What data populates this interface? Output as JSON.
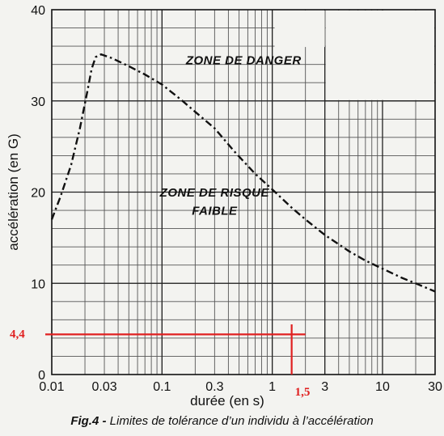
{
  "chart_data": {
    "type": "line",
    "x_scale": "log",
    "xlim": [
      0.01,
      30
    ],
    "ylim": [
      0,
      40
    ],
    "grid": true,
    "xlabel": "durée (en s)",
    "ylabel": "accélération (en G)",
    "x_ticks": [
      {
        "value": 0.01,
        "label": "0.01"
      },
      {
        "value": 0.03,
        "label": "0.03"
      },
      {
        "value": 0.1,
        "label": "0.1"
      },
      {
        "value": 0.3,
        "label": "0.3"
      },
      {
        "value": 1,
        "label": "1"
      },
      {
        "value": 3,
        "label": "3"
      },
      {
        "value": 10,
        "label": "10"
      },
      {
        "value": 30,
        "label": "30"
      }
    ],
    "y_ticks": [
      {
        "value": 0,
        "label": "0"
      },
      {
        "value": 10,
        "label": "10"
      },
      {
        "value": 20,
        "label": "20"
      },
      {
        "value": 30,
        "label": "30"
      },
      {
        "value": 40,
        "label": "40"
      }
    ],
    "series": [
      {
        "line_style": "dash-dot",
        "color": "#111111",
        "x": [
          0.01,
          0.012,
          0.015,
          0.018,
          0.021,
          0.023,
          0.025,
          0.028,
          0.035,
          0.05,
          0.07,
          0.1,
          0.15,
          0.2,
          0.3,
          0.45,
          0.7,
          1,
          1.5,
          2,
          3,
          5,
          7,
          10,
          15,
          20,
          30
        ],
        "y": [
          17,
          19.5,
          23,
          27,
          31,
          33.5,
          34.8,
          35.1,
          34.7,
          33.8,
          32.9,
          31.8,
          30.1,
          28.8,
          27,
          24.5,
          22,
          20.3,
          18.3,
          17,
          15.3,
          13.5,
          12.5,
          11.6,
          10.6,
          10,
          9.1
        ]
      }
    ],
    "annotations": [
      {
        "text": "ZONE DE DANGER",
        "x": 0.55,
        "y": 34
      },
      {
        "text": "ZONE DE RISQUE",
        "x": 0.3,
        "y": 19.5
      },
      {
        "text": "FAIBLE",
        "x": 0.3,
        "y": 17.5
      }
    ],
    "reference_lines": [
      {
        "axis": "y",
        "value": 4.4,
        "label": "4,4",
        "color": "#e02020",
        "x_from": 0.01,
        "x_to": 2.0
      },
      {
        "axis": "x",
        "value": 1.5,
        "label": "1,5",
        "color": "#e02020",
        "y_from": 0,
        "y_to": 5.5
      }
    ]
  },
  "caption": {
    "prefix": "Fig.4 -",
    "text": " Limites de tolérance d’un individu à l’accélération"
  }
}
